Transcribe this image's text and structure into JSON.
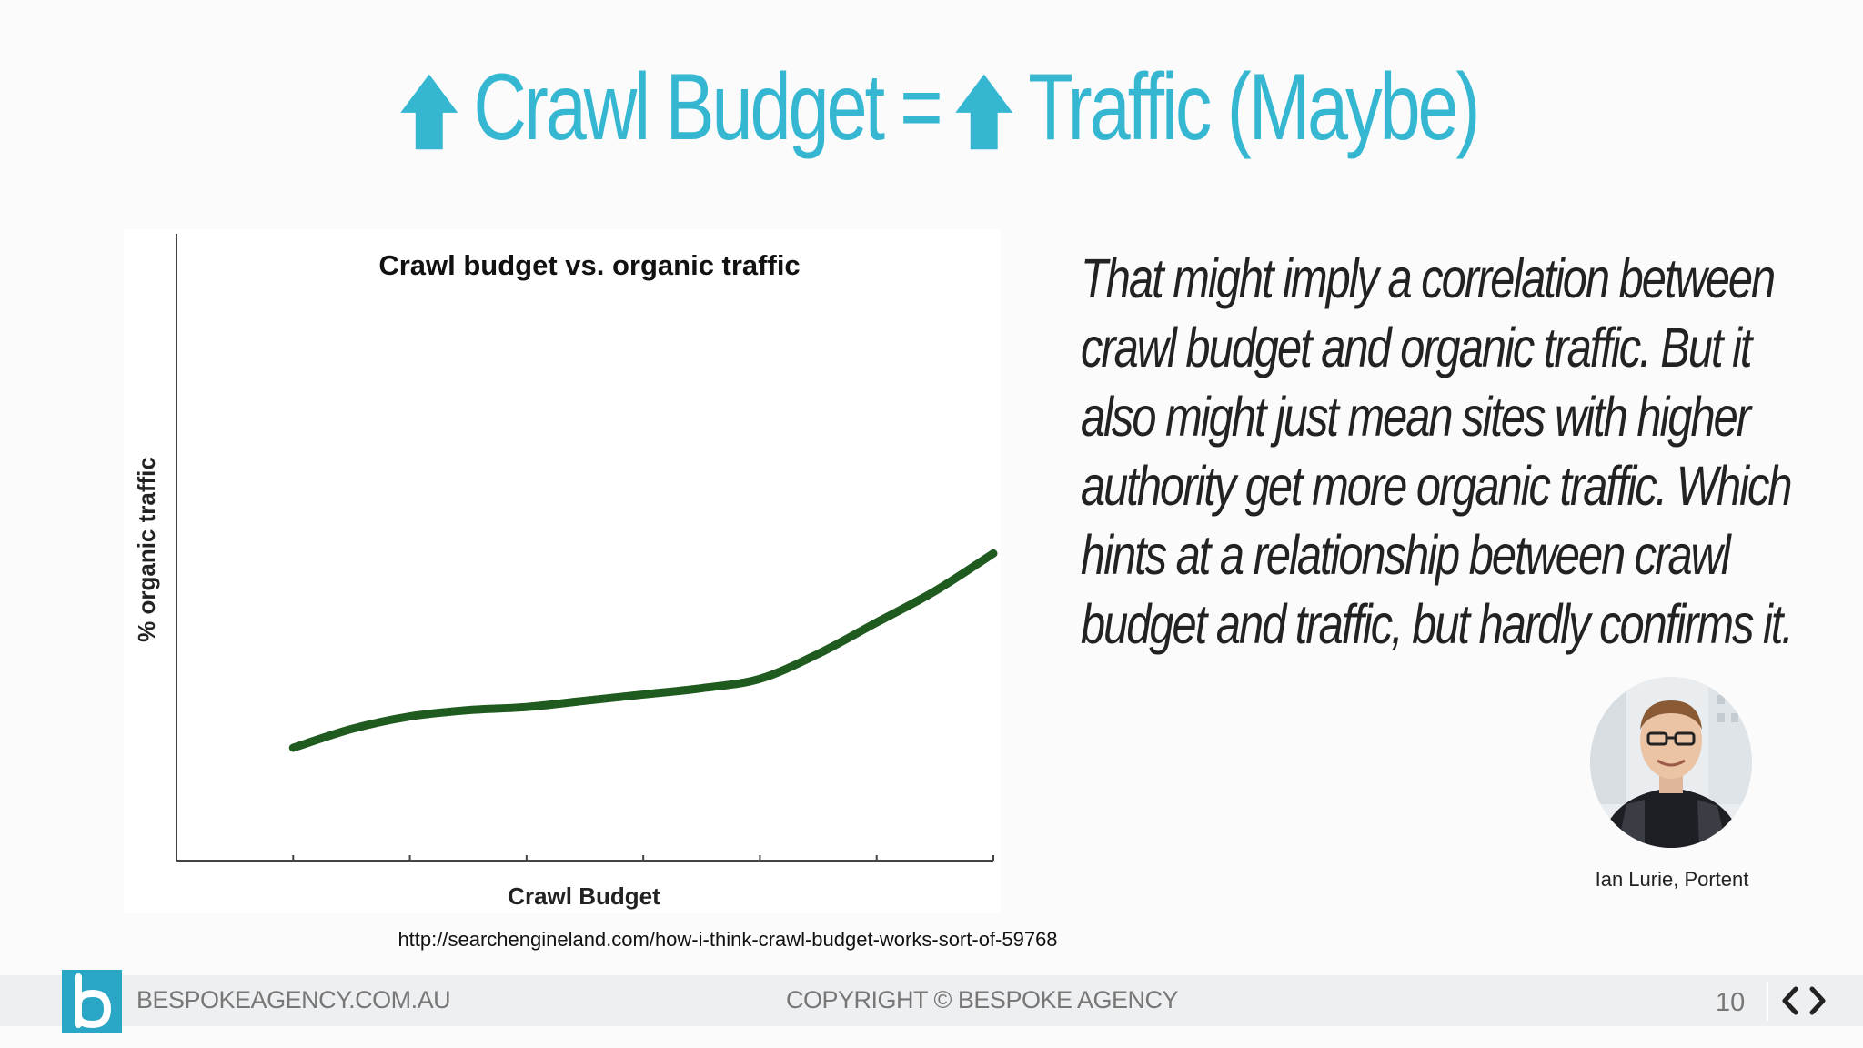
{
  "title": {
    "part1": "Crawl Budget =",
    "part2": "Traffic (Maybe)",
    "arrow_icon": "up-arrow-icon",
    "color": "#35b7d2"
  },
  "chart_data": {
    "type": "line",
    "title": "Crawl budget vs. organic traffic",
    "xlabel": "Crawl Budget",
    "ylabel": "% organic traffic",
    "line_color": "#1f5a1f",
    "series": [
      {
        "x": [
          1.0,
          1.5,
          2.0,
          2.5,
          3.0,
          3.5,
          4.0,
          4.5,
          5.0,
          5.5,
          6.0,
          6.5,
          7.0
        ],
        "y": [
          1.8,
          2.1,
          2.3,
          2.4,
          2.45,
          2.55,
          2.65,
          2.75,
          2.9,
          3.3,
          3.8,
          4.3,
          4.9
        ]
      }
    ],
    "xlim": [
      0,
      7
    ],
    "ylim": [
      0,
      10
    ],
    "x_tick_count": 7,
    "grid": false
  },
  "quote": {
    "lines": [
      "That might imply a correlation between",
      "crawl budget and organic traffic. But it",
      "also might just mean sites with higher",
      "authority get more organic traffic. Which",
      "hints at a relationship between crawl",
      "budget and traffic, but hardly confirms it."
    ]
  },
  "attribution": "Ian Lurie, Portent",
  "source_url": "http://searchengineland.com/how-i-think-crawl-budget-works-sort-of-59768",
  "footer": {
    "domain": "BESPOKEAGENCY.COM.AU",
    "copyright": "COPYRIGHT © BESPOKE AGENCY",
    "page_number": "10",
    "logo_icon": "bespoke-b-logo-icon",
    "prev_icon": "chevron-left-icon",
    "next_icon": "chevron-right-icon",
    "logo_color": "#2aa6c7"
  }
}
